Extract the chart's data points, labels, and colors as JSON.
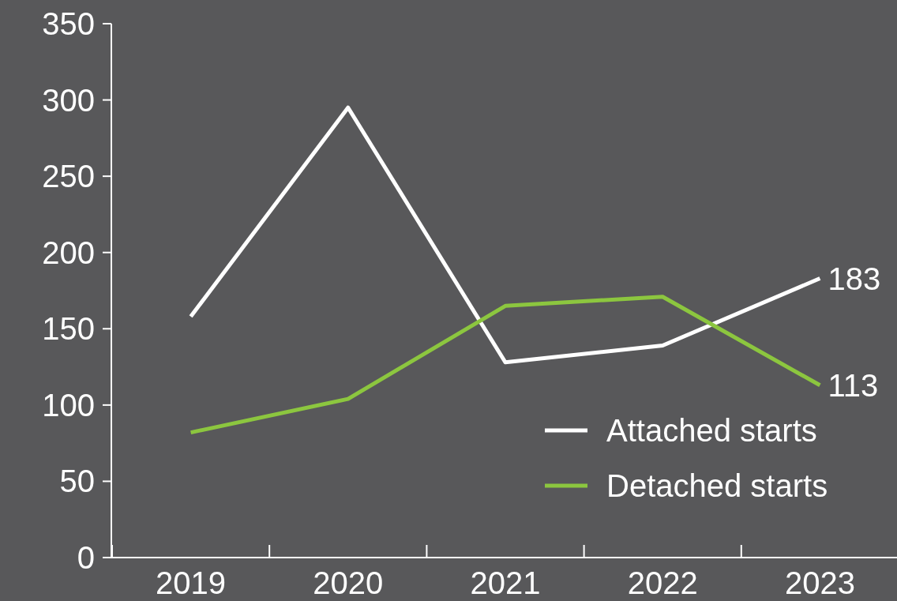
{
  "chart_data": {
    "type": "line",
    "categories": [
      "2019",
      "2020",
      "2021",
      "2022",
      "2023"
    ],
    "series": [
      {
        "name": "Attached starts",
        "color": "#ffffff",
        "values": [
          158,
          295,
          128,
          139,
          183
        ],
        "value_labels": [
          null,
          null,
          null,
          null,
          "183"
        ]
      },
      {
        "name": "Detached starts",
        "color": "#8cc63f",
        "values": [
          82,
          104,
          165,
          171,
          113
        ],
        "value_labels": [
          null,
          null,
          null,
          null,
          "113"
        ]
      }
    ],
    "ylim": [
      0,
      350
    ],
    "yticks": [
      0,
      50,
      100,
      150,
      200,
      250,
      300,
      350
    ],
    "grid": false,
    "legend": "bottom right",
    "marker": "none",
    "line_style": "solid"
  }
}
